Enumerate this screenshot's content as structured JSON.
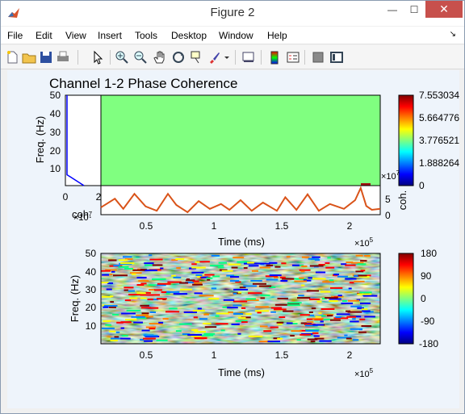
{
  "window": {
    "title": "Figure 2",
    "minimize_symbol": "—",
    "maximize_symbol": "☐",
    "close_symbol": "✕"
  },
  "menu": {
    "items": [
      "File",
      "Edit",
      "View",
      "Insert",
      "Tools",
      "Desktop",
      "Window",
      "Help"
    ],
    "dock_symbol": "↘"
  },
  "toolbar": {
    "icons": [
      "new-figure-icon",
      "open-file-icon",
      "save-icon",
      "print-icon",
      "pointer-icon",
      "zoom-in-icon",
      "zoom-out-icon",
      "pan-hand-icon",
      "rotate-3d-icon",
      "data-cursor-icon",
      "brush-icon",
      "brush-dropdown-icon",
      "link-plot-icon",
      "colorbar-icon",
      "legend-icon",
      "hide-plot-tools-icon",
      "show-plot-tools-icon"
    ]
  },
  "chart_data": [
    {
      "type": "heatmap",
      "title": "Channel 1-2 Phase Coherence",
      "ylabel": "Freq. (Hz)",
      "ylim": [
        0,
        50
      ],
      "yticks": [
        "50",
        "40",
        "30",
        "20",
        "10"
      ],
      "note": "coherence spectrogram, uniform green field with a dark-red spot at the top-right"
    },
    {
      "type": "line",
      "name": "frequency-marginal",
      "xlabel": "coh.",
      "xlim": [
        0,
        20000000
      ],
      "xticks": [
        "0",
        "2"
      ],
      "x_exponent": "×10",
      "x_exponent_power": "7",
      "color": "#0000ff",
      "ylim": [
        0,
        50
      ]
    },
    {
      "type": "line",
      "name": "time-marginal",
      "xlabel": "Time (ms)",
      "x_exponent": "×10",
      "x_exponent_power": "5",
      "xlim": [
        20000,
        220000
      ],
      "xticks": [
        "0.5",
        "1",
        "1.5",
        "2"
      ],
      "ylabel": "coh.",
      "ylim": [
        0,
        60000000
      ],
      "yticks": [
        "0",
        "5"
      ],
      "y_exponent": "×10",
      "y_exponent_power": "7",
      "color": "#d95319",
      "x": [
        20000,
        30000,
        36000,
        44000,
        52000,
        60000,
        68000,
        74000,
        82000,
        90000,
        98000,
        106000,
        112000,
        120000,
        128000,
        136000,
        146000,
        152000,
        160000,
        168000,
        176000,
        184000,
        194000,
        202000,
        206000,
        210000,
        214000,
        220000
      ],
      "y": [
        15000000,
        33000000,
        12000000,
        43000000,
        17000000,
        8000000,
        43000000,
        20000000,
        5000000,
        28000000,
        12000000,
        22000000,
        10000000,
        30000000,
        8000000,
        25000000,
        8000000,
        36000000,
        10000000,
        42000000,
        8000000,
        22000000,
        12000000,
        30000000,
        55000000,
        18000000,
        10000000,
        12000000
      ]
    },
    {
      "type": "bar",
      "name": "colorbar-coherence",
      "ticks": [
        "7.553034",
        "5.664776",
        "3.776521",
        "1.888264",
        "0"
      ],
      "colormap": "jet"
    },
    {
      "type": "heatmap",
      "xlabel": "Time (ms)",
      "x_exponent": "×10",
      "x_exponent_power": "5",
      "xlim": [
        20000,
        220000
      ],
      "xticks": [
        "0.5",
        "1",
        "1.5",
        "2"
      ],
      "ylabel": "Freq. (Hz)",
      "ylim": [
        0,
        50
      ],
      "yticks": [
        "50",
        "40",
        "30",
        "20",
        "10"
      ],
      "colormap": "jet",
      "note": "phase spectrogram, -180 to 180 degrees, banded noisy texture"
    },
    {
      "type": "bar",
      "name": "colorbar-phase",
      "ticks": [
        "180",
        "90",
        "0",
        "-90",
        "-180"
      ],
      "colormap": "jet"
    }
  ]
}
